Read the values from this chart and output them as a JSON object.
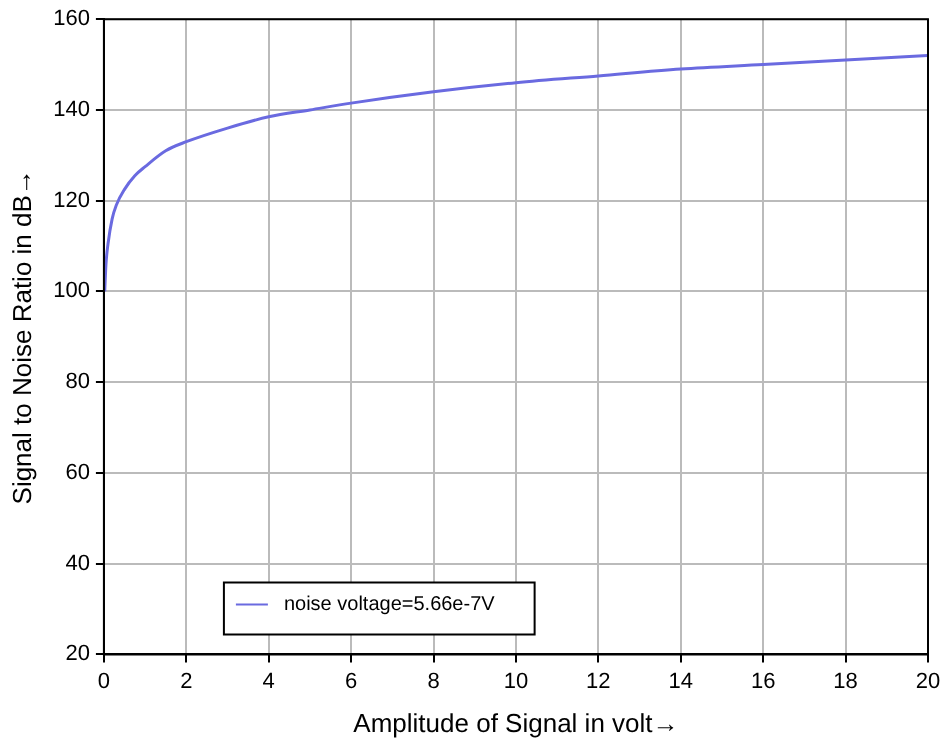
{
  "chart_data": {
    "type": "line",
    "xlabel": "Amplitude of Signal in volt→",
    "ylabel": "Signal to Noise Ratio in dB→",
    "x": [
      0.02,
      0.05,
      0.1,
      0.2,
      0.3,
      0.5,
      0.75,
      1,
      1.5,
      2,
      3,
      4,
      5,
      6,
      8,
      10,
      12,
      14,
      16,
      18,
      20
    ],
    "series": [
      {
        "name": "noise voltage=5.66e-7V",
        "color": "#6a6ae0",
        "values": [
          100,
          106,
          110.5,
          116,
          119,
          122.5,
          125.5,
          127.5,
          131,
          133,
          136,
          138.5,
          140,
          141.5,
          144,
          146,
          147.5,
          149,
          150,
          151,
          152
        ]
      }
    ],
    "xlim": [
      0,
      20
    ],
    "xticks": [
      0,
      2,
      4,
      6,
      8,
      10,
      12,
      14,
      16,
      18,
      20
    ],
    "ylim": [
      20,
      160
    ],
    "yticks": [
      20,
      40,
      60,
      80,
      100,
      120,
      140,
      160
    ],
    "grid": true,
    "legend": "bottom left",
    "marker": "none",
    "line_style": "solid"
  }
}
